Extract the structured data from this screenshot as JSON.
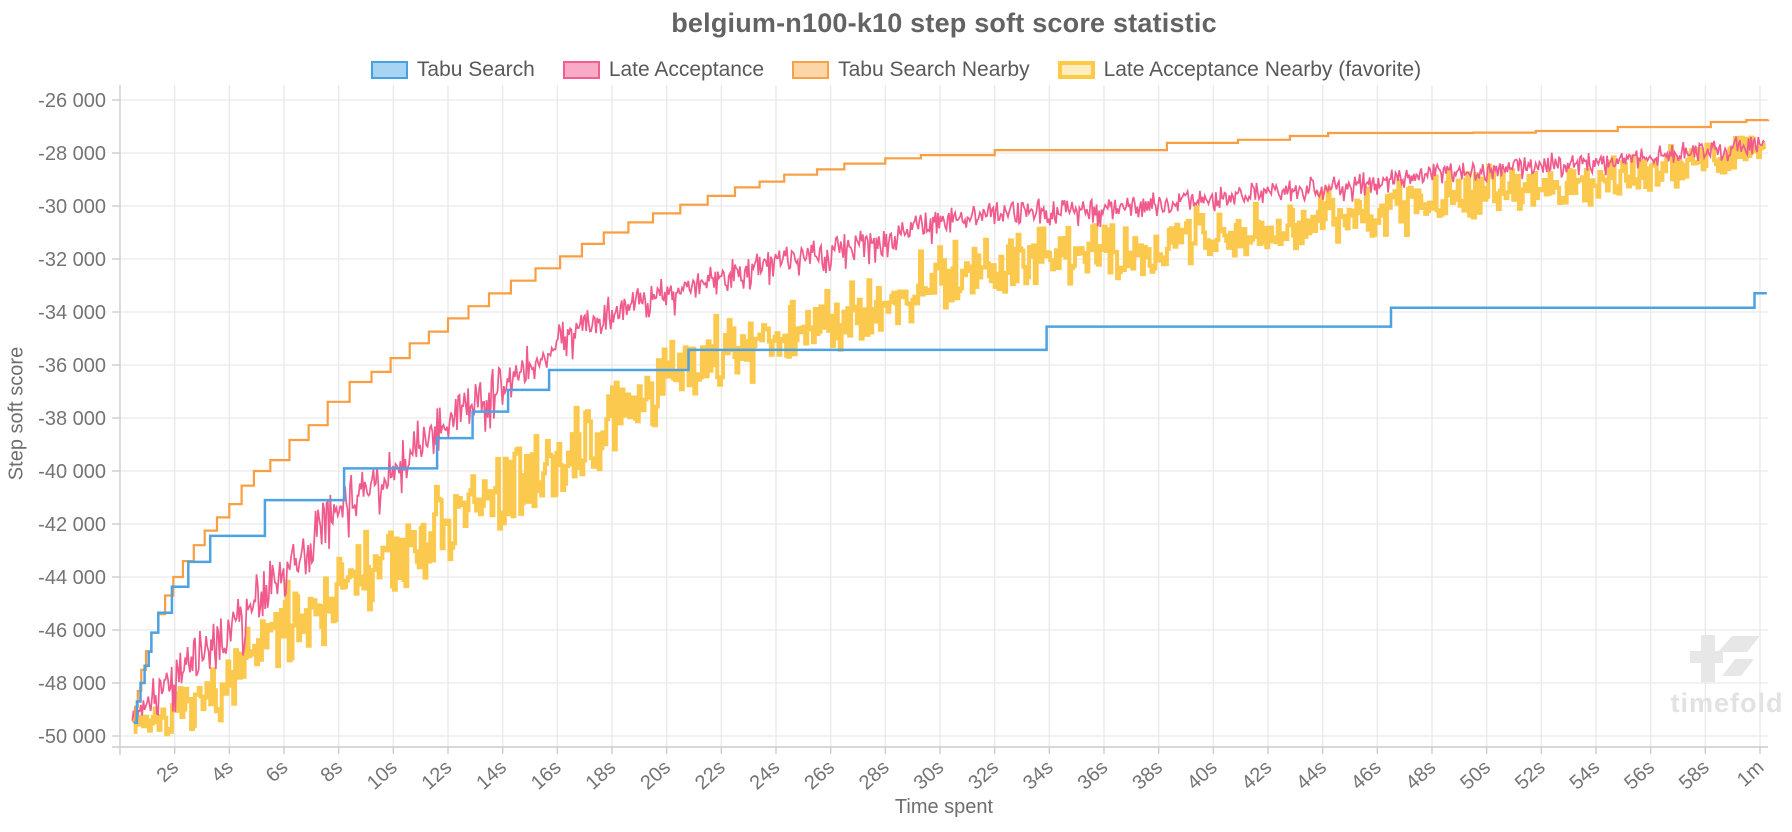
{
  "title": "belgium-n100-k10 step soft score statistic",
  "watermark": "timefold",
  "colors": {
    "grid": "#e9e9e9",
    "spine": "#cccccc",
    "tick": "#cccccc",
    "tick_label": "#747474",
    "watermark_shape": "#e7e7e7",
    "watermark_text": "#e2e2e2"
  },
  "legend": [
    {
      "label": "Tabu Search",
      "fill": "#a8d4f4",
      "border": "#44a1e2",
      "border_width": 2
    },
    {
      "label": "Late Acceptance",
      "fill": "#f9aac6",
      "border": "#f35e8e",
      "border_width": 2
    },
    {
      "label": "Tabu Search Nearby",
      "fill": "#fcd6a6",
      "border": "#f9a04c",
      "border_width": 2
    },
    {
      "label": "Late Acceptance Nearby (favorite)",
      "fill": "#fdedbf",
      "border": "#fcca45",
      "border_width": 4
    }
  ],
  "chart_data": {
    "type": "line",
    "title": "belgium-n100-k10 step soft score statistic",
    "xlabel": "Time spent",
    "ylabel": "Step soft score",
    "xlim": [
      0,
      60.3
    ],
    "ylim": [
      -50420,
      -25430
    ],
    "grid": true,
    "legend_position": "top",
    "x_unit": "seconds",
    "x_ticks": [
      [
        2,
        "2s"
      ],
      [
        4,
        "4s"
      ],
      [
        6,
        "6s"
      ],
      [
        8,
        "8s"
      ],
      [
        10,
        "10s"
      ],
      [
        12,
        "12s"
      ],
      [
        14,
        "14s"
      ],
      [
        16,
        "16s"
      ],
      [
        18,
        "18s"
      ],
      [
        20,
        "20s"
      ],
      [
        22,
        "22s"
      ],
      [
        24,
        "24s"
      ],
      [
        26,
        "26s"
      ],
      [
        28,
        "28s"
      ],
      [
        30,
        "30s"
      ],
      [
        32,
        "32s"
      ],
      [
        34,
        "34s"
      ],
      [
        36,
        "36s"
      ],
      [
        38,
        "38s"
      ],
      [
        40,
        "40s"
      ],
      [
        42,
        "42s"
      ],
      [
        44,
        "44s"
      ],
      [
        46,
        "46s"
      ],
      [
        48,
        "48s"
      ],
      [
        50,
        "50s"
      ],
      [
        52,
        "52s"
      ],
      [
        54,
        "54s"
      ],
      [
        56,
        "56s"
      ],
      [
        58,
        "58s"
      ],
      [
        60,
        "1m"
      ]
    ],
    "y_ticks": [
      [
        -26000,
        "-26 000"
      ],
      [
        -28000,
        "-28 000"
      ],
      [
        -30000,
        "-30 000"
      ],
      [
        -32000,
        "-32 000"
      ],
      [
        -34000,
        "-34 000"
      ],
      [
        -36000,
        "-36 000"
      ],
      [
        -38000,
        "-38 000"
      ],
      [
        -40000,
        "-40 000"
      ],
      [
        -42000,
        "-42 000"
      ],
      [
        -44000,
        "-44 000"
      ],
      [
        -46000,
        "-46 000"
      ],
      [
        -48000,
        "-48 000"
      ],
      [
        -50000,
        "-50 000"
      ]
    ],
    "series": [
      {
        "name": "Late Acceptance Nearby (favorite)",
        "style": "noisy-step",
        "color": "#fcc94f",
        "width": 4,
        "center": [
          [
            0.5,
            -49400
          ],
          [
            1,
            -49450
          ],
          [
            2,
            -49250
          ],
          [
            3,
            -48650
          ],
          [
            4,
            -47900
          ],
          [
            5,
            -46900
          ],
          [
            6,
            -45800
          ],
          [
            7,
            -45100
          ],
          [
            8,
            -44480
          ],
          [
            9,
            -43850
          ],
          [
            10,
            -43230
          ],
          [
            11,
            -42650
          ],
          [
            12,
            -42100
          ],
          [
            13,
            -41400
          ],
          [
            14,
            -40700
          ],
          [
            15,
            -40200
          ],
          [
            16,
            -39600
          ],
          [
            17,
            -38800
          ],
          [
            18,
            -38000
          ],
          [
            19,
            -37300
          ],
          [
            20,
            -36600
          ],
          [
            21,
            -36050
          ],
          [
            22,
            -35550
          ],
          [
            23,
            -35250
          ],
          [
            24,
            -35000
          ],
          [
            25,
            -34650
          ],
          [
            26,
            -34300
          ],
          [
            27,
            -33900
          ],
          [
            28,
            -33550
          ],
          [
            29,
            -33050
          ],
          [
            30,
            -32560
          ],
          [
            31,
            -32350
          ],
          [
            32,
            -32150
          ],
          [
            33,
            -32050
          ],
          [
            34,
            -31950
          ],
          [
            35,
            -31780
          ],
          [
            36,
            -31600
          ],
          [
            37,
            -31500
          ],
          [
            38,
            -31400
          ],
          [
            39,
            -31200
          ],
          [
            40,
            -31000
          ],
          [
            41,
            -30900
          ],
          [
            42,
            -30790
          ],
          [
            43,
            -30600
          ],
          [
            44,
            -30400
          ],
          [
            45,
            -30330
          ],
          [
            46,
            -30260
          ],
          [
            47,
            -30000
          ],
          [
            48,
            -29770
          ],
          [
            49,
            -29600
          ],
          [
            50,
            -29450
          ],
          [
            51,
            -29350
          ],
          [
            52,
            -29270
          ],
          [
            53,
            -29100
          ],
          [
            54,
            -28950
          ],
          [
            55,
            -28820
          ],
          [
            56,
            -28700
          ],
          [
            57,
            -28480
          ],
          [
            58,
            -28260
          ],
          [
            59,
            -28080
          ],
          [
            60,
            -27890
          ],
          [
            60.2,
            -27850
          ]
        ],
        "amplitude": [
          [
            0.5,
            300
          ],
          [
            1,
            400
          ],
          [
            2,
            600
          ],
          [
            3,
            800
          ],
          [
            4,
            950
          ],
          [
            6,
            1100
          ],
          [
            8,
            1150
          ],
          [
            12,
            1150
          ],
          [
            14,
            1100
          ],
          [
            18,
            1100
          ],
          [
            20,
            1050
          ],
          [
            24,
            1000
          ],
          [
            26,
            950
          ],
          [
            30,
            900
          ],
          [
            32,
            880
          ],
          [
            34,
            850
          ],
          [
            38,
            820
          ],
          [
            42,
            800
          ],
          [
            44,
            780
          ],
          [
            46,
            760
          ],
          [
            48,
            700
          ],
          [
            50,
            680
          ],
          [
            52,
            650
          ],
          [
            54,
            620
          ],
          [
            56,
            600
          ],
          [
            58,
            560
          ],
          [
            60,
            520
          ]
        ]
      },
      {
        "name": "Late Acceptance",
        "style": "noisy-line",
        "color": "#f05a8c",
        "width": 1.7,
        "center": [
          [
            0.45,
            -49300
          ],
          [
            1,
            -48800
          ],
          [
            2,
            -47900
          ],
          [
            3,
            -46870
          ],
          [
            4,
            -45850
          ],
          [
            5,
            -44800
          ],
          [
            6,
            -43800
          ],
          [
            7,
            -42700
          ],
          [
            8,
            -41600
          ],
          [
            9,
            -40700
          ],
          [
            10,
            -39950
          ],
          [
            11,
            -39000
          ],
          [
            12,
            -38100
          ],
          [
            13,
            -37400
          ],
          [
            14,
            -36800
          ],
          [
            15,
            -36000
          ],
          [
            16,
            -35200
          ],
          [
            17,
            -34600
          ],
          [
            18,
            -34000
          ],
          [
            19,
            -33600
          ],
          [
            20,
            -33280
          ],
          [
            21,
            -33000
          ],
          [
            22,
            -32790
          ],
          [
            23,
            -32400
          ],
          [
            24,
            -32040
          ],
          [
            25,
            -31850
          ],
          [
            26,
            -31660
          ],
          [
            27,
            -31450
          ],
          [
            28,
            -31250
          ],
          [
            29,
            -30900
          ],
          [
            30,
            -30560
          ],
          [
            31,
            -30400
          ],
          [
            32,
            -30300
          ],
          [
            33,
            -30280
          ],
          [
            34,
            -30200
          ],
          [
            35,
            -30150
          ],
          [
            36,
            -30050
          ],
          [
            37,
            -30000
          ],
          [
            38,
            -29950
          ],
          [
            39,
            -29820
          ],
          [
            40,
            -29700
          ],
          [
            41,
            -29600
          ],
          [
            42,
            -29500
          ],
          [
            43,
            -29400
          ],
          [
            44,
            -29300
          ],
          [
            45,
            -29200
          ],
          [
            46,
            -29100
          ],
          [
            47,
            -28950
          ],
          [
            48,
            -28800
          ],
          [
            49,
            -28750
          ],
          [
            50,
            -28700
          ],
          [
            51,
            -28550
          ],
          [
            52,
            -28400
          ],
          [
            53,
            -28400
          ],
          [
            54,
            -28350
          ],
          [
            55,
            -28250
          ],
          [
            56,
            -28150
          ],
          [
            57,
            -28000
          ],
          [
            58,
            -27900
          ],
          [
            59,
            -27800
          ],
          [
            60,
            -27700
          ],
          [
            60.2,
            -27600
          ]
        ],
        "amplitude": [
          [
            0.45,
            600
          ],
          [
            1,
            800
          ],
          [
            2,
            1000
          ],
          [
            4,
            1200
          ],
          [
            6,
            1200
          ],
          [
            8,
            1100
          ],
          [
            10,
            1050
          ],
          [
            12,
            1000
          ],
          [
            14,
            950
          ],
          [
            16,
            880
          ],
          [
            18,
            800
          ],
          [
            20,
            720
          ],
          [
            24,
            640
          ],
          [
            28,
            600
          ],
          [
            32,
            560
          ],
          [
            36,
            540
          ],
          [
            40,
            500
          ],
          [
            44,
            480
          ],
          [
            48,
            460
          ],
          [
            52,
            440
          ],
          [
            56,
            420
          ],
          [
            60,
            400
          ]
        ]
      },
      {
        "name": "Tabu Search Nearby",
        "style": "step",
        "color": "#f99f42",
        "width": 2.2,
        "points": [
          [
            0.45,
            -49450
          ],
          [
            0.55,
            -48900
          ],
          [
            0.65,
            -48300
          ],
          [
            0.78,
            -47500
          ],
          [
            0.95,
            -46800
          ],
          [
            1.15,
            -46100
          ],
          [
            1.4,
            -45400
          ],
          [
            1.65,
            -44700
          ],
          [
            1.95,
            -44000
          ],
          [
            2.3,
            -43400
          ],
          [
            2.7,
            -42800
          ],
          [
            3.1,
            -42250
          ],
          [
            3.55,
            -41750
          ],
          [
            4.0,
            -41250
          ],
          [
            4.45,
            -40550
          ],
          [
            4.9,
            -40000
          ],
          [
            5.5,
            -39590
          ],
          [
            6.2,
            -38830
          ],
          [
            6.9,
            -38270
          ],
          [
            7.6,
            -37390
          ],
          [
            8.4,
            -36640
          ],
          [
            9.2,
            -36260
          ],
          [
            9.9,
            -35740
          ],
          [
            10.6,
            -35180
          ],
          [
            11.3,
            -34740
          ],
          [
            12.0,
            -34240
          ],
          [
            12.75,
            -33780
          ],
          [
            13.5,
            -33300
          ],
          [
            14.3,
            -32820
          ],
          [
            15.2,
            -32350
          ],
          [
            16.1,
            -31900
          ],
          [
            16.9,
            -31430
          ],
          [
            17.7,
            -31000
          ],
          [
            18.6,
            -30620
          ],
          [
            19.5,
            -30280
          ],
          [
            20.5,
            -29950
          ],
          [
            21.5,
            -29620
          ],
          [
            22.5,
            -29300
          ],
          [
            23.4,
            -29080
          ],
          [
            24.3,
            -28820
          ],
          [
            25.5,
            -28620
          ],
          [
            26.5,
            -28400
          ],
          [
            28.0,
            -28200
          ],
          [
            29.3,
            -28080
          ],
          [
            32.0,
            -27890
          ],
          [
            38.3,
            -27620
          ],
          [
            40.9,
            -27500
          ],
          [
            42.8,
            -27360
          ],
          [
            44.2,
            -27245
          ],
          [
            49.5,
            -27230
          ],
          [
            51.8,
            -27170
          ],
          [
            54.8,
            -27020
          ],
          [
            58.2,
            -26830
          ],
          [
            59.5,
            -26760
          ],
          [
            60.3,
            -26740
          ]
        ]
      },
      {
        "name": "Tabu Search",
        "style": "step",
        "color": "#4da2e2",
        "width": 2.5,
        "points": [
          [
            0.5,
            -49500
          ],
          [
            0.62,
            -48700
          ],
          [
            0.75,
            -48000
          ],
          [
            0.9,
            -47350
          ],
          [
            1.05,
            -46820
          ],
          [
            1.15,
            -46100
          ],
          [
            1.4,
            -45350
          ],
          [
            1.9,
            -44370
          ],
          [
            2.5,
            -43430
          ],
          [
            3.3,
            -42450
          ],
          [
            5.3,
            -41100
          ],
          [
            8.2,
            -39900
          ],
          [
            11.6,
            -38760
          ],
          [
            12.9,
            -37760
          ],
          [
            14.2,
            -36940
          ],
          [
            15.7,
            -36190
          ],
          [
            20.8,
            -35430
          ],
          [
            33.9,
            -34550
          ],
          [
            46.5,
            -33840
          ],
          [
            59.8,
            -33290
          ],
          [
            60.25,
            -33290
          ]
        ]
      }
    ]
  }
}
